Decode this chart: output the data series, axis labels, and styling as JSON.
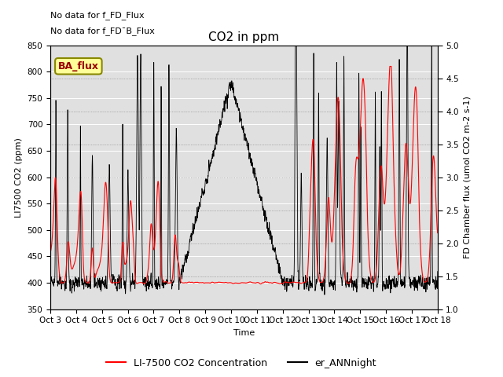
{
  "title": "CO2 in ppm",
  "xlabel": "Time",
  "ylabel_left": "LI7500 CO2 (ppm)",
  "ylabel_right": "FD Chamber flux (umol CO2 m-2 s-1)",
  "ylim_left": [
    350,
    850
  ],
  "ylim_right": [
    1.0,
    5.0
  ],
  "yticks_left": [
    350,
    400,
    450,
    500,
    550,
    600,
    650,
    700,
    750,
    800,
    850
  ],
  "yticks_right": [
    1.0,
    1.5,
    2.0,
    2.5,
    3.0,
    3.5,
    4.0,
    4.5,
    5.0
  ],
  "x_tick_labels": [
    "Oct 3",
    "Oct 4",
    "Oct 5",
    "Oct 6",
    "Oct 7",
    "Oct 8",
    "Oct 9",
    "Oct 10",
    "Oct 11",
    "Oct 12",
    "Oct 13",
    "Oct 14",
    "Oct 15",
    "Oct 16",
    "Oct 17",
    "Oct 18"
  ],
  "note1": "No data for f_FD_Flux",
  "note2": "No data for f_FD¯B_Flux",
  "legend_box_label": "BA_flux",
  "legend_box_facecolor": "#ffff99",
  "legend_box_edgecolor": "#888800",
  "legend_box_textcolor": "#990000",
  "red_line_label": "LI-7500 CO2 Concentration",
  "black_line_label": "er_ANNnight",
  "red_color": "#ff0000",
  "black_color": "#000000",
  "bg_color": "#e0e0e0",
  "fig_bg": "#ffffff",
  "note_fontsize": 8,
  "title_fontsize": 11,
  "axis_label_fontsize": 8,
  "tick_fontsize": 7.5,
  "legend_fontsize": 9
}
